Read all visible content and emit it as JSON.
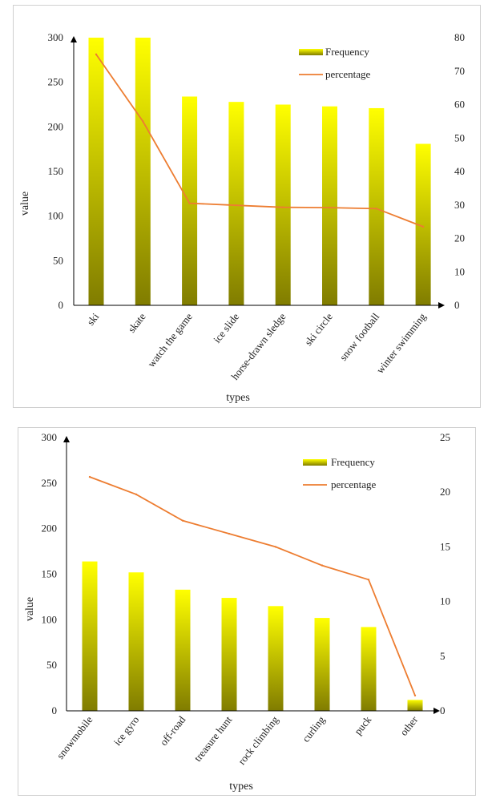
{
  "chart_data": [
    {
      "type": "bar",
      "title": "",
      "xlabel": "types",
      "ylabel": "value",
      "categories": [
        "ski",
        "skate",
        "watch the game",
        "ice slide",
        "horse-drawn sledge",
        "ski circle",
        "snow football",
        "winter swimming"
      ],
      "series": [
        {
          "name": "Frequency",
          "type": "bar",
          "axis": "left",
          "values": [
            300,
            300,
            234,
            228,
            225,
            223,
            221,
            181
          ]
        },
        {
          "name": "percentage",
          "type": "line",
          "axis": "right",
          "values": [
            75,
            55,
            30.5,
            29.9,
            29.3,
            29.2,
            28.9,
            23.5
          ]
        }
      ],
      "ylim": [
        0,
        300
      ],
      "yticks": [
        0,
        50,
        100,
        150,
        200,
        250,
        300
      ],
      "y2lim": [
        0,
        80
      ],
      "y2ticks": [
        0,
        10,
        20,
        30,
        40,
        50,
        60,
        70,
        80
      ],
      "legend_position": "top-right",
      "colors": {
        "bar_top": "#ffff00",
        "bar_bottom": "#807c00",
        "line": "#ed7d31",
        "axis": "#000000"
      }
    },
    {
      "type": "bar",
      "title": "",
      "xlabel": "types",
      "ylabel": "value",
      "categories": [
        "snowmobile",
        "ice gyro",
        "off-road",
        "treasure hunt",
        "rock climbing",
        "curling",
        "puck",
        "other"
      ],
      "series": [
        {
          "name": "Frequency",
          "type": "bar",
          "axis": "left",
          "values": [
            164,
            152,
            133,
            124,
            115,
            102,
            92,
            12
          ]
        },
        {
          "name": "percentage",
          "type": "line",
          "axis": "right",
          "values": [
            21.4,
            19.8,
            17.4,
            16.2,
            15.0,
            13.3,
            12.0,
            1.4
          ]
        }
      ],
      "ylim": [
        0,
        300
      ],
      "yticks": [
        0,
        50,
        100,
        150,
        200,
        250,
        300
      ],
      "y2lim": [
        0,
        25
      ],
      "y2ticks": [
        0,
        5,
        10,
        15,
        20,
        25
      ],
      "legend_position": "top-right",
      "colors": {
        "bar_top": "#ffff00",
        "bar_bottom": "#807c00",
        "line": "#ed7d31",
        "axis": "#000000"
      }
    }
  ]
}
